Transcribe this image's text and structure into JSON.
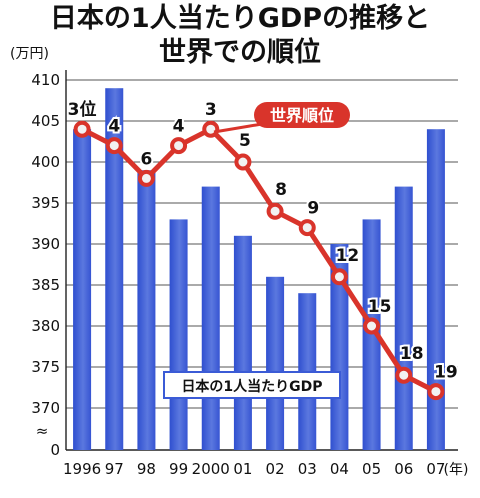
{
  "title_line1": "日本の1人当たりGDPの推移と",
  "title_line2": "世界での順位",
  "chart_data": {
    "type": "bar",
    "categories": [
      "1996",
      "97",
      "98",
      "99",
      "2000",
      "01",
      "02",
      "03",
      "04",
      "05",
      "06",
      "07"
    ],
    "x_unit": "(年)",
    "y_unit": "(万円)",
    "y_ticks": [
      "410",
      "405",
      "400",
      "395",
      "390",
      "385",
      "380",
      "375",
      "370",
      "0"
    ],
    "ylim": [
      370,
      410
    ],
    "axis_break": "≈",
    "series": [
      {
        "name": "日本の1人当たりGDP",
        "values": [
          404,
          409,
          399,
          393,
          397,
          391,
          386,
          384,
          390,
          393,
          397,
          404
        ]
      },
      {
        "name": "世界順位",
        "ranks": [
          "3位",
          "4",
          "6",
          "4",
          "3",
          "5",
          "8",
          "9",
          "12",
          "15",
          "18",
          "19"
        ],
        "marker_values": [
          404,
          402,
          398,
          402,
          404,
          400,
          394,
          392,
          386,
          380,
          374,
          372
        ]
      }
    ],
    "legend_bar_label": "日本の1人当たりGDP",
    "callout_label": "世界順位",
    "colors": {
      "bar": "#4a67d6",
      "line": "#d9342b",
      "marker_fill": "#f2f2f2"
    }
  }
}
